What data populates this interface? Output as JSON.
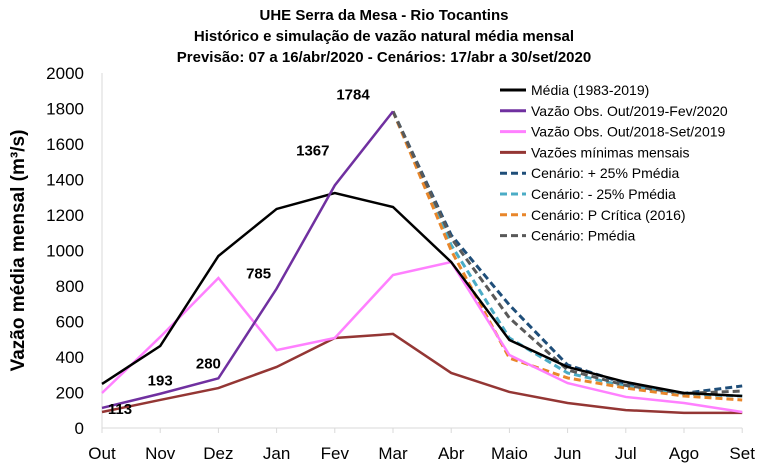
{
  "chart_data": {
    "type": "line",
    "title": [
      "UHE Serra da Mesa - Rio Tocantins",
      "Histórico e simulação de vazão natural média mensal",
      "Previsão: 07 a 16/abr/2020 - Cenários: 17/abr a 30/set/2020"
    ],
    "ylabel": "Vazão média mensal (m³/s)",
    "xlabel": "",
    "ylim": [
      0,
      2000
    ],
    "yticks": [
      0,
      200,
      400,
      600,
      800,
      1000,
      1200,
      1400,
      1600,
      1800,
      2000
    ],
    "categories": [
      "Out",
      "Nov",
      "Dez",
      "Jan",
      "Fev",
      "Mar",
      "Abr",
      "Maio",
      "Jun",
      "Jul",
      "Ago",
      "Set"
    ],
    "legend_position": "top-right",
    "grid": false,
    "series": [
      {
        "name": "Média (1983-2019)",
        "color": "#000000",
        "dash": false,
        "values": [
          248,
          462,
          969,
          1234,
          1324,
          1245,
          935,
          496,
          344,
          259,
          197,
          180
        ]
      },
      {
        "name": "Vazão Obs. Out/2019-Fev/2020",
        "color": "#7030A0",
        "dash": false,
        "values": [
          113,
          193,
          280,
          785,
          1367,
          1784,
          null,
          null,
          null,
          null,
          null,
          null
        ]
      },
      {
        "name": "Vazão Obs. Out/2018-Set/2019",
        "color": "#FF80FF",
        "dash": false,
        "values": [
          197,
          513,
          845,
          439,
          507,
          862,
          935,
          411,
          253,
          175,
          141,
          90
        ]
      },
      {
        "name": "Vazões mínimas mensais",
        "color": "#943634",
        "dash": false,
        "values": [
          90,
          158,
          225,
          344,
          507,
          530,
          310,
          203,
          141,
          101,
          85,
          85
        ]
      },
      {
        "name": "Cenário: + 25% Pmédia",
        "color": "#1F4E79",
        "dash": true,
        "values": [
          null,
          null,
          null,
          null,
          null,
          1784,
          1087,
          693,
          355,
          250,
          195,
          237
        ]
      },
      {
        "name": "Cenário: - 25% Pmédia",
        "color": "#4BACC6",
        "dash": true,
        "values": [
          null,
          null,
          null,
          null,
          null,
          1784,
          1031,
          507,
          310,
          235,
          190,
          180
        ]
      },
      {
        "name": "Cenário: P Crítica (2016)",
        "color": "#E8862A",
        "dash": true,
        "values": [
          null,
          null,
          null,
          null,
          null,
          1784,
          1000,
          394,
          282,
          225,
          180,
          158
        ]
      },
      {
        "name": "Cenário: Pmédia",
        "color": "#595959",
        "dash": true,
        "values": [
          null,
          null,
          null,
          null,
          null,
          1784,
          1070,
          620,
          327,
          240,
          195,
          208
        ]
      }
    ],
    "data_labels": [
      {
        "category": "Out",
        "value": 113,
        "text": "113"
      },
      {
        "category": "Nov",
        "value": 193,
        "text": "193"
      },
      {
        "category": "Dez",
        "value": 280,
        "text": "280"
      },
      {
        "category": "Jan",
        "value": 785,
        "text": "785"
      },
      {
        "category": "Fev",
        "value": 1367,
        "text": "1367"
      },
      {
        "category": "Mar",
        "value": 1784,
        "text": "1784"
      }
    ]
  }
}
